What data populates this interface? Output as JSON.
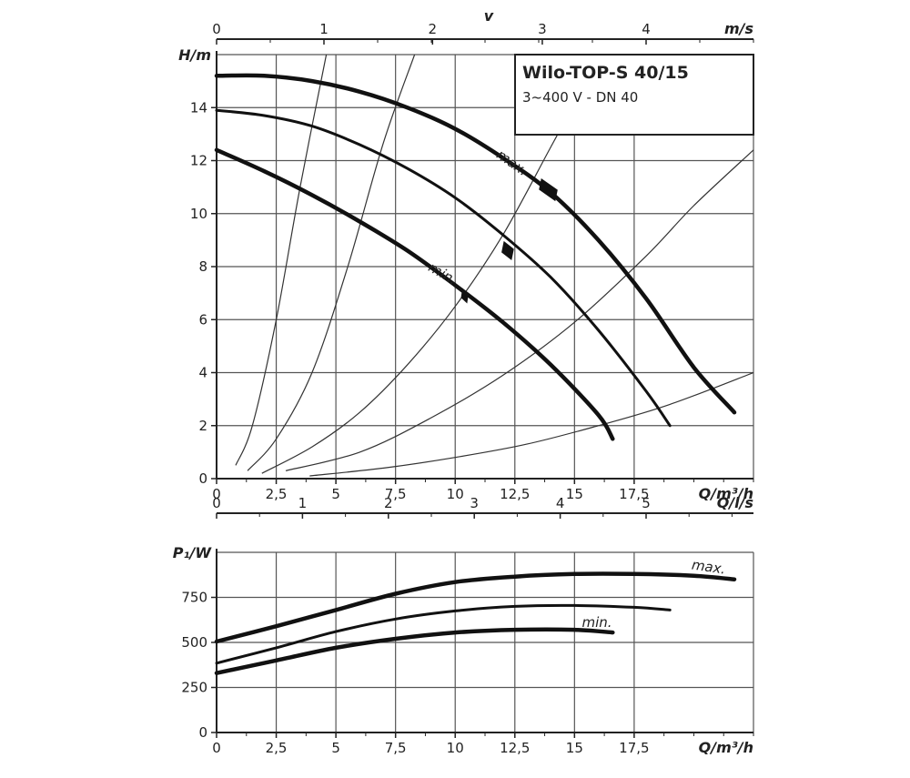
{
  "chart_data": [
    {
      "type": "line",
      "title": "Wilo-TOP-S 40/15",
      "subtitle": "3~400 V - DN 40",
      "xlabel": "Q/m³/h",
      "ylabel": "H/m",
      "top_axis_label": "m/s",
      "top_axis_letter": "v",
      "xlim": [
        0,
        22.5
      ],
      "ylim": [
        0,
        16
      ],
      "x_ticks": [
        0,
        2.5,
        5,
        7.5,
        10,
        12.5,
        15,
        17.5
      ],
      "x_tick_labels": [
        "0",
        "2,5",
        "5",
        "7,5",
        "10",
        "12,5",
        "15",
        "17,5"
      ],
      "y_ticks": [
        0,
        2,
        4,
        6,
        8,
        10,
        12,
        14
      ],
      "y_tick_labels": [
        "0",
        "2",
        "4",
        "6",
        "8",
        "10",
        "12",
        "14"
      ],
      "top_ticks": [
        0,
        1,
        2,
        3,
        4
      ],
      "top_ticks_q": [
        0,
        4.5,
        9.05,
        13.65,
        18.0
      ],
      "grid": true,
      "series": [
        {
          "name": "max.",
          "x": [
            0,
            2,
            4,
            6,
            8,
            10,
            12,
            14,
            16,
            18,
            20,
            21.7
          ],
          "y": [
            15.2,
            15.2,
            15.0,
            14.6,
            14.0,
            13.2,
            12.1,
            10.8,
            9.0,
            6.8,
            4.2,
            2.5
          ]
        },
        {
          "name": "",
          "x": [
            0,
            2,
            4,
            6,
            8,
            10,
            12,
            14,
            16,
            18,
            19
          ],
          "y": [
            13.9,
            13.7,
            13.3,
            12.6,
            11.7,
            10.6,
            9.2,
            7.6,
            5.6,
            3.3,
            2.0
          ]
        },
        {
          "name": "min.",
          "x": [
            0,
            2,
            4,
            6,
            8,
            10,
            12,
            14,
            16,
            16.6
          ],
          "y": [
            12.4,
            11.6,
            10.7,
            9.7,
            8.6,
            7.3,
            5.9,
            4.3,
            2.4,
            1.5
          ]
        }
      ],
      "system_curves": [
        {
          "x": [
            0.8,
            1.5,
            2.5,
            3.5,
            4.6
          ],
          "y": [
            0.5,
            2.0,
            6.0,
            11.0,
            16.0
          ]
        },
        {
          "x": [
            1.3,
            2.5,
            4.0,
            5.5,
            7.0,
            8.3
          ],
          "y": [
            0.3,
            1.5,
            4.0,
            8.0,
            12.7,
            16.0
          ]
        },
        {
          "x": [
            1.9,
            4.0,
            6.0,
            8.0,
            10.0,
            12.0,
            14.0,
            15.5
          ],
          "y": [
            0.2,
            1.2,
            2.5,
            4.3,
            6.5,
            9.2,
            12.5,
            15.0
          ]
        },
        {
          "x": [
            2.9,
            6.0,
            9.0,
            12.0,
            15.0,
            18.0,
            20.0,
            22.5
          ],
          "y": [
            0.3,
            1.0,
            2.3,
            3.9,
            5.9,
            8.4,
            10.3,
            12.4
          ]
        },
        {
          "x": [
            3.9,
            7.0,
            10.0,
            13.0,
            16.0,
            19.0,
            22.5
          ],
          "y": [
            0.1,
            0.4,
            0.8,
            1.3,
            2.0,
            2.8,
            4.0
          ]
        }
      ],
      "markers": [
        {
          "q": 13.9,
          "h": 10.9
        },
        {
          "q": 12.2,
          "h": 8.6
        },
        {
          "q": 10.4,
          "h": 6.9
        }
      ]
    },
    {
      "type": "line",
      "xlabel": "Q/m³/h",
      "ylabel": "P₁/W",
      "top_axis_label": "Q/l/s",
      "xlim": [
        0,
        22.5
      ],
      "ylim": [
        0,
        1000
      ],
      "x_ticks": [
        0,
        2.5,
        5,
        7.5,
        10,
        12.5,
        15,
        17.5
      ],
      "x_tick_labels": [
        "0",
        "2,5",
        "5",
        "7,5",
        "10",
        "12,5",
        "15",
        "17,5"
      ],
      "y_ticks": [
        0,
        250,
        500,
        750
      ],
      "y_tick_labels": [
        "0",
        "250",
        "500",
        "750"
      ],
      "top_ticks": [
        0,
        1,
        2,
        3,
        4,
        5
      ],
      "top_ticks_q": [
        0,
        3.6,
        7.2,
        10.8,
        14.4,
        18.0
      ],
      "grid": true,
      "series": [
        {
          "name": "max.",
          "x": [
            0,
            2.5,
            5,
            7.5,
            10,
            12.5,
            15,
            17.5,
            20,
            21.7
          ],
          "y": [
            505,
            590,
            680,
            770,
            835,
            865,
            880,
            880,
            870,
            850
          ]
        },
        {
          "name": "",
          "x": [
            0,
            2.5,
            5,
            7.5,
            10,
            12.5,
            15,
            17.5,
            19
          ],
          "y": [
            385,
            470,
            560,
            630,
            675,
            700,
            705,
            695,
            680
          ]
        },
        {
          "name": "min.",
          "x": [
            0,
            2.5,
            5,
            7.5,
            10,
            12.5,
            15,
            16.6
          ],
          "y": [
            330,
            400,
            470,
            520,
            555,
            570,
            570,
            555
          ]
        }
      ]
    }
  ]
}
